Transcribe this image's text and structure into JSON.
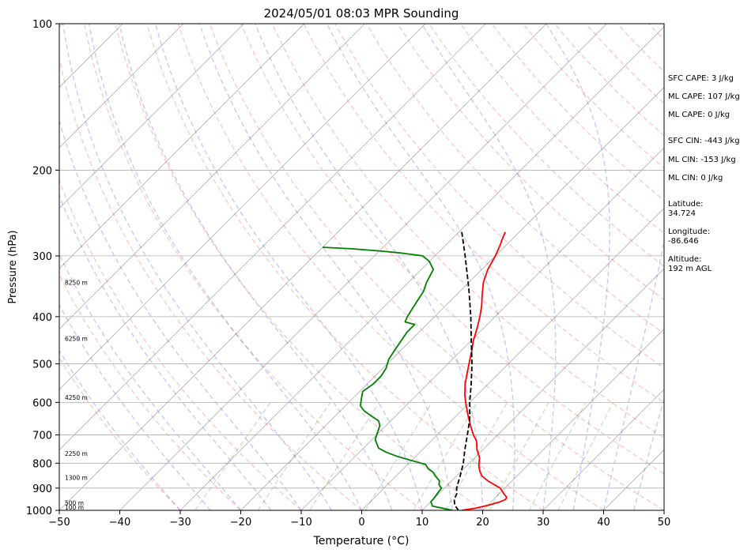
{
  "chart_data": {
    "type": "skew-t",
    "title": "2024/05/01 08:03 MPR Sounding",
    "xlabel": "Temperature (°C)",
    "ylabel": "Pressure (hPa)",
    "xlim": [
      -50,
      50
    ],
    "ylim": [
      1000,
      100
    ],
    "y_scale": "log",
    "x_ticks": [
      -50,
      -40,
      -30,
      -20,
      -10,
      0,
      10,
      20,
      30,
      40,
      50
    ],
    "x_tick_labels": [
      "−50",
      "−40",
      "−30",
      "−20",
      "−10",
      "0",
      "10",
      "20",
      "30",
      "40",
      "50"
    ],
    "y_ticks": [
      100,
      200,
      300,
      400,
      500,
      600,
      700,
      800,
      900,
      1000
    ],
    "y_tick_labels": [
      "100",
      "200",
      "300",
      "400",
      "500",
      "600",
      "700",
      "800",
      "900",
      "1000"
    ],
    "grid": true,
    "height_labels": [
      {
        "p": 1000,
        "text": "100 m"
      },
      {
        "p": 980,
        "text": "500 m"
      },
      {
        "p": 870,
        "text": "1300 m"
      },
      {
        "p": 775,
        "text": "2250 m"
      },
      {
        "p": 595,
        "text": "4250 m"
      },
      {
        "p": 450,
        "text": "6250 m"
      },
      {
        "p": 345,
        "text": "8250 m"
      }
    ],
    "series": [
      {
        "color": "#ff0000",
        "points": [
          [
            1000,
            16.5
          ],
          [
            990,
            18.5
          ],
          [
            975,
            20.2
          ],
          [
            960,
            21.5
          ],
          [
            950,
            22.0
          ],
          [
            940,
            21.8
          ],
          [
            925,
            20.8
          ],
          [
            900,
            19.2
          ],
          [
            870,
            16.0
          ],
          [
            850,
            14.2
          ],
          [
            830,
            13.0
          ],
          [
            810,
            12.0
          ],
          [
            780,
            10.8
          ],
          [
            750,
            9.0
          ],
          [
            720,
            7.5
          ],
          [
            700,
            6.0
          ],
          [
            670,
            4.0
          ],
          [
            640,
            2.0
          ],
          [
            610,
            0.0
          ],
          [
            580,
            -2.0
          ],
          [
            550,
            -3.8
          ],
          [
            520,
            -5.4
          ],
          [
            500,
            -6.5
          ],
          [
            470,
            -8.2
          ],
          [
            450,
            -9.5
          ],
          [
            420,
            -11.2
          ],
          [
            400,
            -12.5
          ],
          [
            380,
            -14.0
          ],
          [
            360,
            -15.8
          ],
          [
            340,
            -17.6
          ],
          [
            320,
            -19.0
          ],
          [
            300,
            -20.0
          ],
          [
            285,
            -21.0
          ],
          [
            275,
            -21.8
          ],
          [
            268,
            -22.3
          ]
        ]
      },
      {
        "color": "#008000",
        "points": [
          [
            1000,
            15.0
          ],
          [
            990,
            13.0
          ],
          [
            980,
            11.0
          ],
          [
            970,
            10.5
          ],
          [
            960,
            10.0
          ],
          [
            950,
            10.0
          ],
          [
            930,
            9.8
          ],
          [
            900,
            9.5
          ],
          [
            885,
            8.5
          ],
          [
            870,
            8.0
          ],
          [
            850,
            6.5
          ],
          [
            835,
            5.5
          ],
          [
            820,
            4.0
          ],
          [
            805,
            3.0
          ],
          [
            790,
            0.0
          ],
          [
            775,
            -3.0
          ],
          [
            760,
            -5.5
          ],
          [
            745,
            -7.5
          ],
          [
            730,
            -8.5
          ],
          [
            715,
            -9.5
          ],
          [
            700,
            -10.0
          ],
          [
            685,
            -10.5
          ],
          [
            670,
            -11.0
          ],
          [
            655,
            -12.0
          ],
          [
            640,
            -14.0
          ],
          [
            625,
            -16.0
          ],
          [
            610,
            -17.5
          ],
          [
            590,
            -18.5
          ],
          [
            570,
            -19.5
          ],
          [
            550,
            -19.0
          ],
          [
            530,
            -19.0
          ],
          [
            510,
            -19.5
          ],
          [
            490,
            -20.5
          ],
          [
            470,
            -21.0
          ],
          [
            450,
            -21.5
          ],
          [
            430,
            -22.0
          ],
          [
            415,
            -22.0
          ],
          [
            410,
            -24.0
          ],
          [
            400,
            -24.5
          ],
          [
            385,
            -25.0
          ],
          [
            370,
            -25.5
          ],
          [
            355,
            -26.0
          ],
          [
            340,
            -27.0
          ],
          [
            320,
            -28.0
          ],
          [
            308,
            -30.0
          ],
          [
            300,
            -32.0
          ],
          [
            296,
            -36.0
          ],
          [
            293,
            -40.0
          ],
          [
            290,
            -45.0
          ],
          [
            288,
            -50.0
          ]
        ]
      },
      {
        "color": "#000000",
        "dashed": true,
        "points": [
          [
            1000,
            16.0
          ],
          [
            975,
            14.5
          ],
          [
            950,
            13.5
          ],
          [
            925,
            13.0
          ],
          [
            900,
            12.0
          ],
          [
            850,
            10.6
          ],
          [
            800,
            9.0
          ],
          [
            750,
            7.0
          ],
          [
            700,
            5.0
          ],
          [
            650,
            2.8
          ],
          [
            600,
            0.0
          ],
          [
            550,
            -2.8
          ],
          [
            500,
            -6.0
          ],
          [
            450,
            -9.8
          ],
          [
            400,
            -14.0
          ],
          [
            350,
            -19.0
          ],
          [
            300,
            -25.0
          ],
          [
            268,
            -29.5
          ]
        ]
      }
    ],
    "annotations": [
      {
        "text": "SFC CAPE: 3 J/kg"
      },
      {
        "text": "ML CAPE: 107 J/kg"
      },
      {
        "text": "ML CAPE: 0 J/kg"
      },
      {
        "text": "SFC CIN: -443 J/kg"
      },
      {
        "text": "ML CIN: -153 J/kg"
      },
      {
        "text": "ML CIN: 0 J/kg"
      },
      {
        "text": "Latitude:\n34.724"
      },
      {
        "text": "Longitude:\n-86.646"
      },
      {
        "text": "Altitude:\n192 m AGL"
      }
    ]
  }
}
